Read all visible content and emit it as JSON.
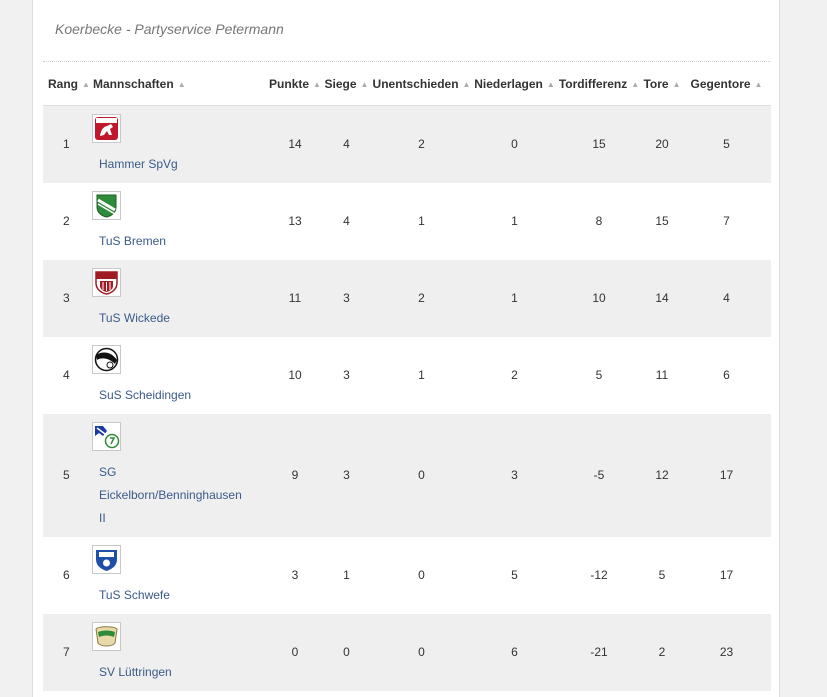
{
  "title": "Koerbecke - Partyservice Petermann",
  "columns": [
    {
      "key": "rang",
      "label": "Rang"
    },
    {
      "key": "team",
      "label": "Mannschaften"
    },
    {
      "key": "punkte",
      "label": "Punkte"
    },
    {
      "key": "siege",
      "label": "Siege"
    },
    {
      "key": "unentschieden",
      "label": "Unentschieden"
    },
    {
      "key": "niederlagen",
      "label": "Niederlagen"
    },
    {
      "key": "tordifferenz",
      "label": "Tordifferenz"
    },
    {
      "key": "tore",
      "label": "Tore"
    },
    {
      "key": "gegentore",
      "label": "Gegentore"
    }
  ],
  "sort_icon": "sort-arrows-icon",
  "rows": [
    {
      "rang": "1",
      "team": "Hammer SpVg",
      "logo": "hammer-spvg-logo-icon",
      "punkte": "14",
      "siege": "4",
      "unentschieden": "2",
      "niederlagen": "0",
      "tordifferenz": "15",
      "tore": "20",
      "gegentore": "5"
    },
    {
      "rang": "2",
      "team": "TuS Bremen",
      "logo": "tus-bremen-logo-icon",
      "punkte": "13",
      "siege": "4",
      "unentschieden": "1",
      "niederlagen": "1",
      "tordifferenz": "8",
      "tore": "15",
      "gegentore": "7"
    },
    {
      "rang": "3",
      "team": "TuS Wickede",
      "logo": "tus-wickede-logo-icon",
      "punkte": "11",
      "siege": "3",
      "unentschieden": "2",
      "niederlagen": "1",
      "tordifferenz": "10",
      "tore": "14",
      "gegentore": "4"
    },
    {
      "rang": "4",
      "team": "SuS Scheidingen",
      "logo": "sus-scheidingen-logo-icon",
      "punkte": "10",
      "siege": "3",
      "unentschieden": "1",
      "niederlagen": "2",
      "tordifferenz": "5",
      "tore": "11",
      "gegentore": "6"
    },
    {
      "rang": "5",
      "team_lines": [
        "SG",
        "Eickelborn/Benninghausen",
        "II"
      ],
      "logo": "sg-eickelborn-logo-icon",
      "punkte": "9",
      "siege": "3",
      "unentschieden": "0",
      "niederlagen": "3",
      "tordifferenz": "-5",
      "tore": "12",
      "gegentore": "17"
    },
    {
      "rang": "6",
      "team": "TuS Schwefe",
      "logo": "tus-schwefe-logo-icon",
      "punkte": "3",
      "siege": "1",
      "unentschieden": "0",
      "niederlagen": "5",
      "tordifferenz": "-12",
      "tore": "5",
      "gegentore": "17"
    },
    {
      "rang": "7",
      "team": "SV Lüttringen",
      "logo": "sv-luettringen-logo-icon",
      "punkte": "0",
      "siege": "0",
      "unentschieden": "0",
      "niederlagen": "6",
      "tordifferenz": "-21",
      "tore": "2",
      "gegentore": "23"
    }
  ]
}
